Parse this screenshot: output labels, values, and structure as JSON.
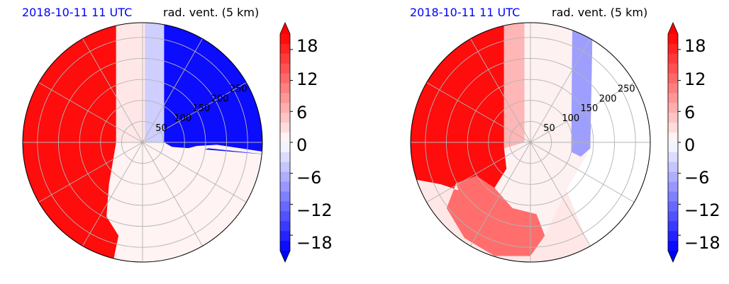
{
  "figure": {
    "panels": [
      {
        "date_label": "2018-10-11 11 UTC",
        "variable_label": "rad. vent. (5 km)",
        "colorbar_ticks": [
          "18",
          "12",
          "6",
          "0",
          "−6",
          "−12",
          "−18"
        ]
      },
      {
        "date_label": "2018-10-11 11 UTC",
        "variable_label": "rad. vent. (5 km)",
        "colorbar_ticks": [
          "18",
          "12",
          "6",
          "0",
          "−6",
          "−12",
          "−18"
        ]
      }
    ]
  },
  "colors": {
    "positive": "#ff0000",
    "negative": "#0000ff",
    "neutral": "#fdf1f1",
    "grid": "#b3b3b3"
  },
  "chart_data": [
    {
      "type": "heatmap",
      "projection": "polar",
      "title": "2018-10-11 11 UTC rad. vent. (5 km)",
      "radial_ticks": [
        50,
        100,
        150,
        200,
        250
      ],
      "radial_range": [
        0,
        285
      ],
      "radial_tick_labels": [
        "50",
        "100",
        "150",
        "200",
        "250"
      ],
      "angular_grid_step_deg": 30,
      "grid": true,
      "colorbar": {
        "range": [
          -21,
          21
        ],
        "ticks": [
          18,
          12,
          6,
          0,
          -6,
          -12,
          -18
        ],
        "extend": "both",
        "cmap": "bwr",
        "levels": 22
      },
      "regions": [
        {
          "description": "west half",
          "value": 20
        },
        {
          "description": "north strip near center",
          "value": 2
        },
        {
          "description": "north-center beam",
          "value": -4
        },
        {
          "description": "north-east sector",
          "value": -20
        },
        {
          "description": "east-south-east band",
          "value": -20
        },
        {
          "description": "south half",
          "value": 1
        }
      ]
    },
    {
      "type": "heatmap",
      "projection": "polar",
      "title": "2018-10-11 11 UTC rad. vent. (5 km)",
      "radial_ticks": [
        50,
        100,
        150,
        200,
        250
      ],
      "radial_range": [
        0,
        285
      ],
      "radial_tick_labels": [
        "50",
        "100",
        "150",
        "200",
        "250"
      ],
      "angular_grid_step_deg": 30,
      "grid": true,
      "colorbar": {
        "range": [
          -21,
          21
        ],
        "ticks": [
          18,
          12,
          6,
          0,
          -6,
          -12,
          -18
        ],
        "extend": "both",
        "cmap": "bwr",
        "levels": 22
      },
      "regions": [
        {
          "description": "west half",
          "value": 20
        },
        {
          "description": "north strip",
          "value": 6
        },
        {
          "description": "north-east beam",
          "value": -8
        },
        {
          "description": "east",
          "value": 0
        },
        {
          "description": "south-west cells",
          "value": 12
        },
        {
          "description": "south",
          "value": 2
        }
      ]
    }
  ]
}
